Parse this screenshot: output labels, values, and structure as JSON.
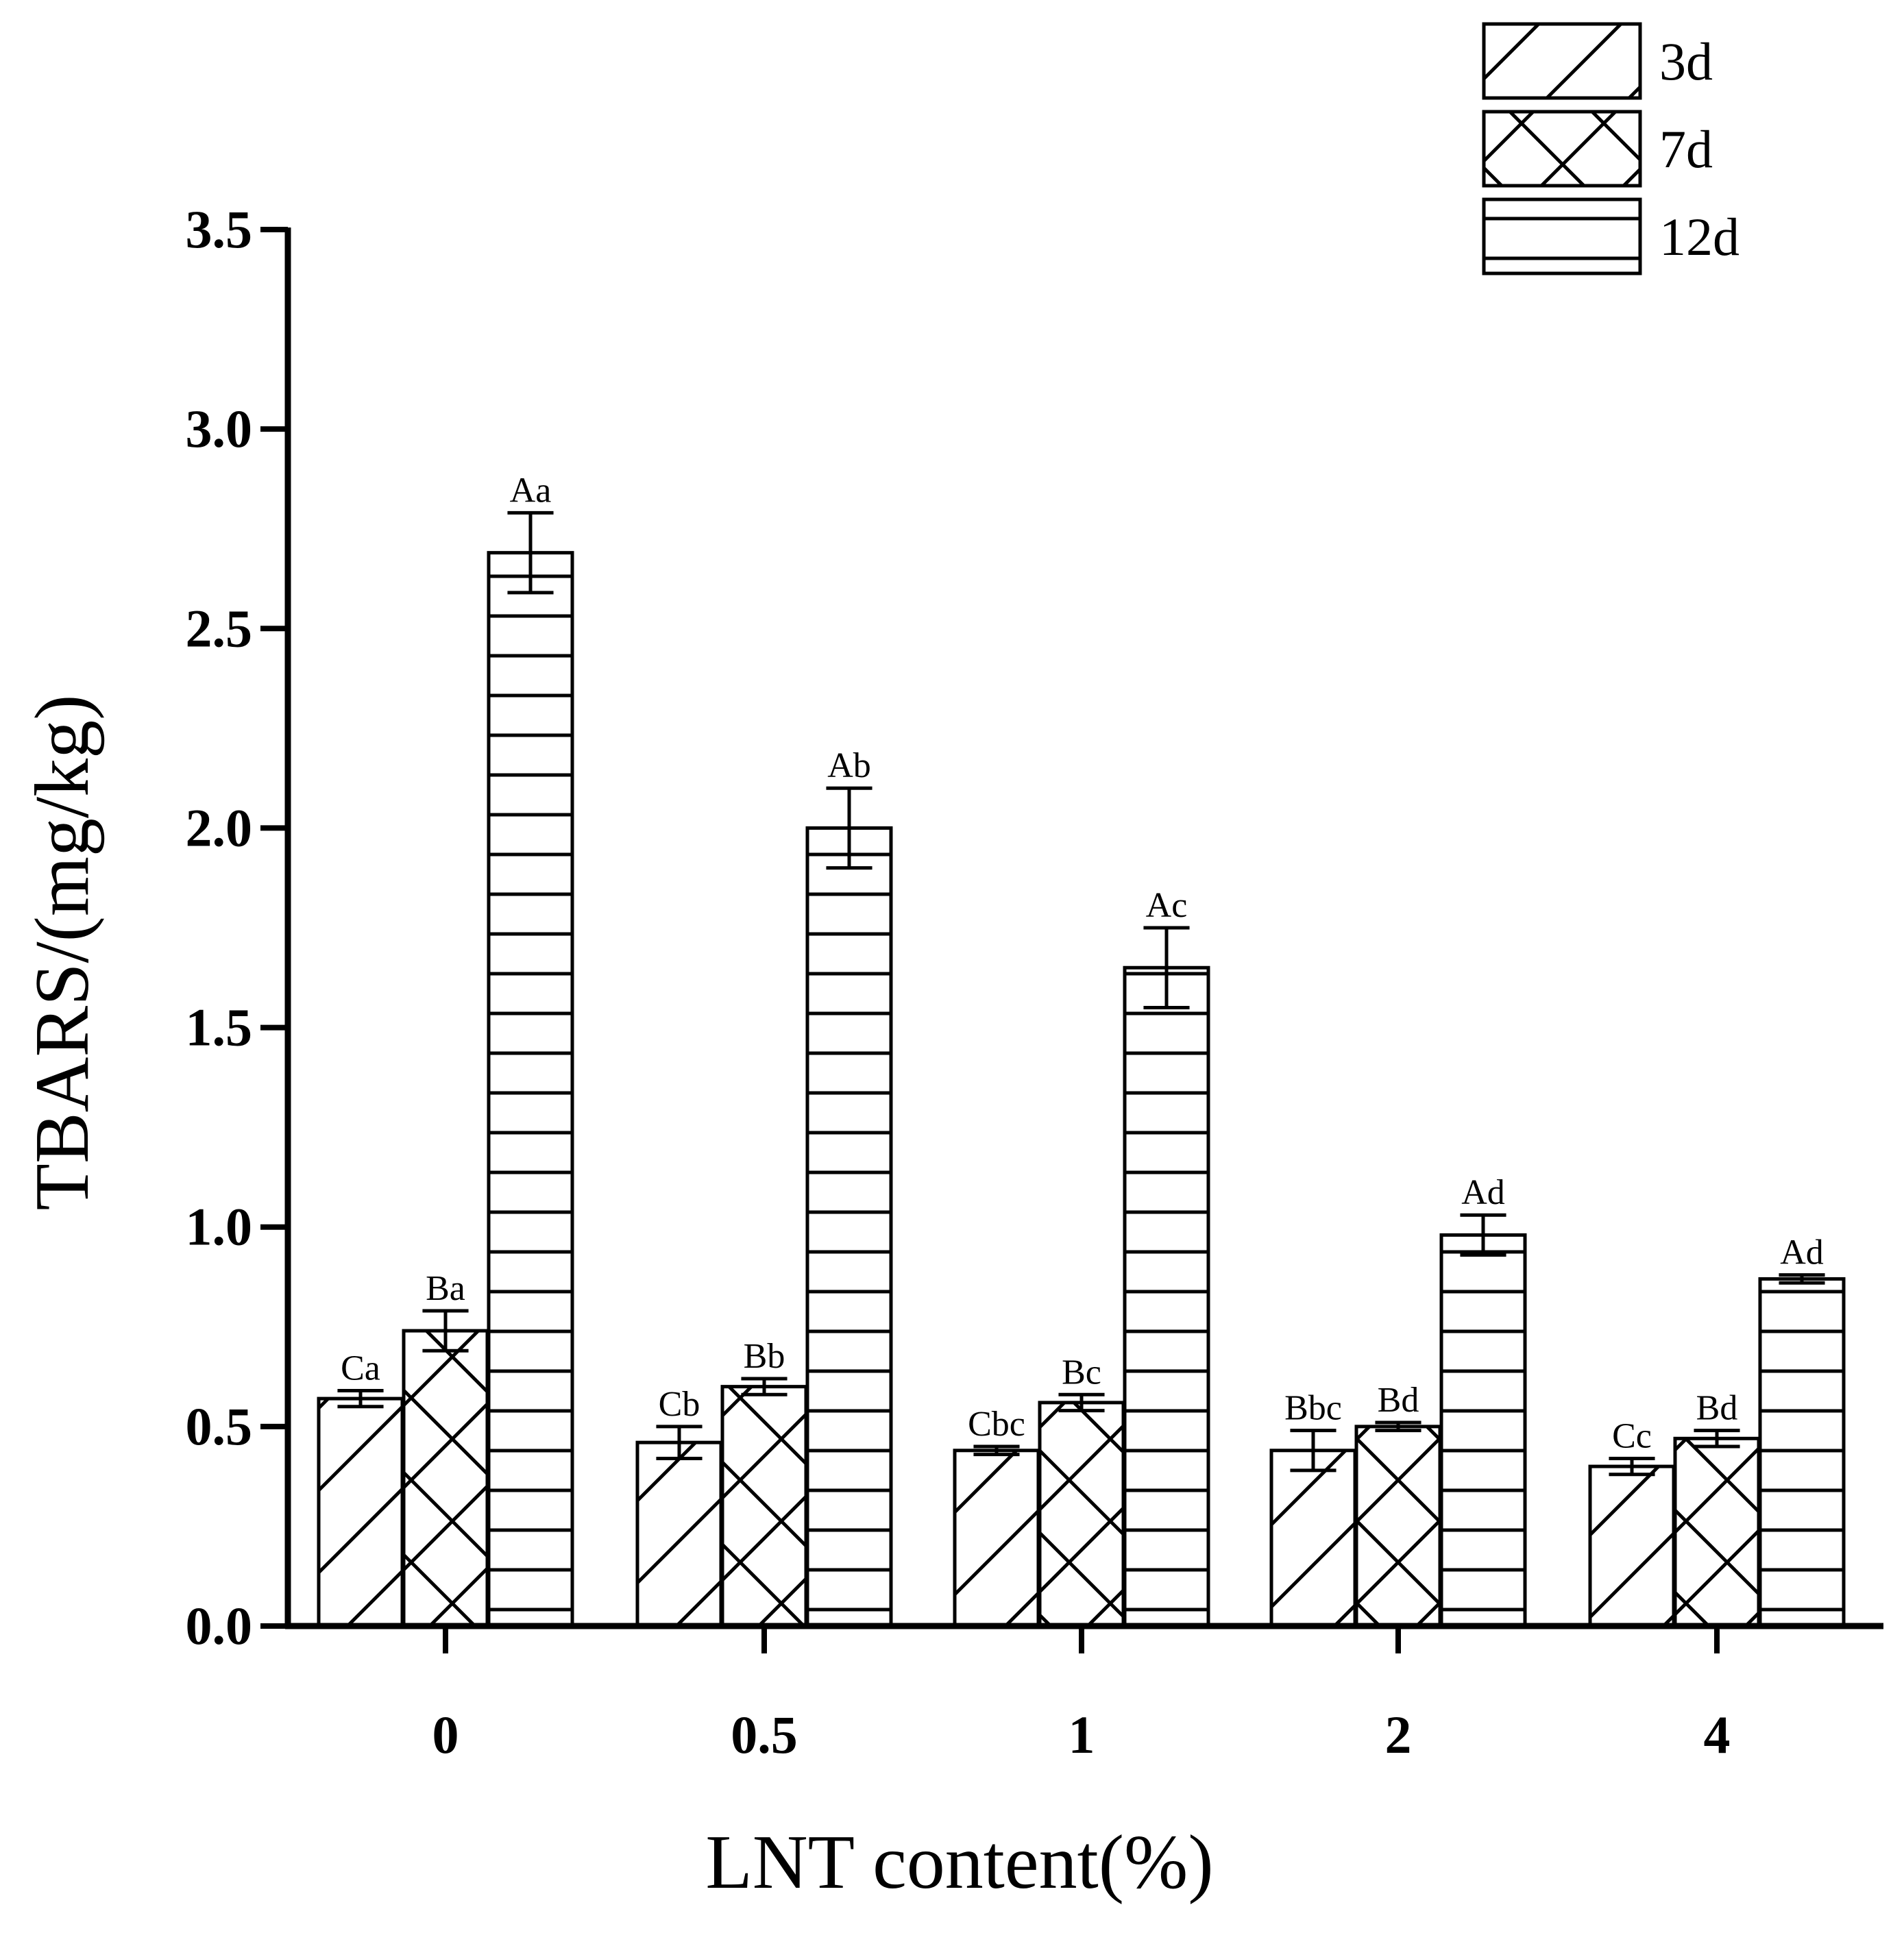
{
  "chart_data": {
    "type": "bar",
    "xlabel": "LNT content(%)",
    "ylabel": "TBARS/(mg/kg)",
    "categories": [
      "0",
      "0.5",
      "1",
      "2",
      "4"
    ],
    "ylim": [
      0,
      3.5
    ],
    "yticks": [
      "0.0",
      "0.5",
      "1.0",
      "1.5",
      "2.0",
      "2.5",
      "3.0",
      "3.5"
    ],
    "grid": false,
    "legend_position": "top-right",
    "bar_fill": "#ffffff",
    "bar_stroke": "#000000",
    "series": [
      {
        "name": "3d",
        "pattern": "diagonal",
        "values": [
          0.57,
          0.46,
          0.44,
          0.44,
          0.4
        ],
        "errors": [
          0.02,
          0.04,
          0.01,
          0.05,
          0.02
        ],
        "labels": [
          "Ca",
          "Cb",
          "Cbc",
          "Bbc",
          "Cc"
        ]
      },
      {
        "name": "7d",
        "pattern": "cross",
        "values": [
          0.74,
          0.6,
          0.56,
          0.5,
          0.47
        ],
        "errors": [
          0.05,
          0.02,
          0.02,
          0.01,
          0.02
        ],
        "labels": [
          "Ba",
          "Bb",
          "Bc",
          "Bd",
          "Bd"
        ]
      },
      {
        "name": "12d",
        "pattern": "horizontal",
        "values": [
          2.69,
          2.0,
          1.65,
          0.98,
          0.87
        ],
        "errors": [
          0.1,
          0.1,
          0.1,
          0.05,
          0.01
        ],
        "labels": [
          "Aa",
          "Ab",
          "Ac",
          "Ad",
          "Ad"
        ]
      }
    ]
  }
}
